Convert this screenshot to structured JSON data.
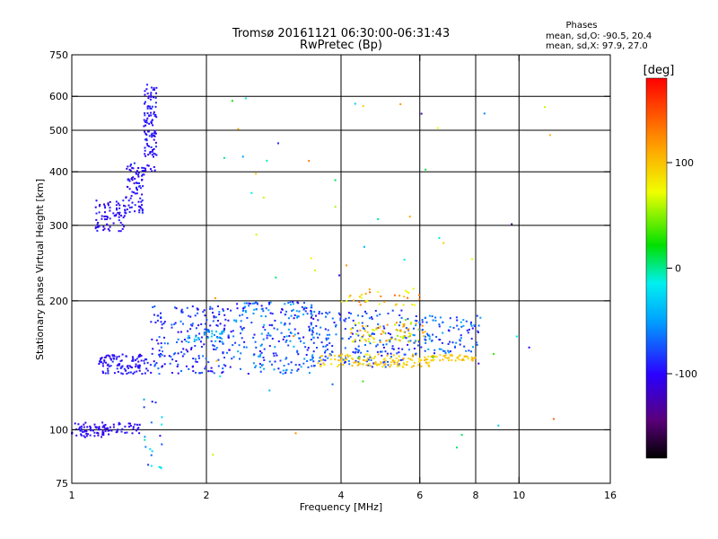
{
  "chart_data": {
    "type": "scatter",
    "title": "Tromsø 20161121 06:30:00-06:31:43",
    "subtitle": "RwPretec (Bp)",
    "xlabel": "Frequency [MHz]",
    "ylabel": "Stationary phase Virtual Height [km]",
    "x_scale": "log",
    "y_scale": "log",
    "xlim": [
      1,
      16
    ],
    "ylim": [
      75,
      750
    ],
    "x_ticks": [
      1,
      2,
      4,
      6,
      8,
      10,
      16
    ],
    "x_tick_labels": [
      "1",
      "2",
      "4",
      "6",
      "8",
      "10",
      "16"
    ],
    "y_ticks": [
      75,
      100,
      200,
      300,
      400,
      500,
      600,
      750
    ],
    "y_tick_labels": [
      "75",
      "100",
      "200",
      "300",
      "400",
      "500",
      "600",
      "750"
    ],
    "grid": true,
    "colorbar": {
      "label": "[deg]",
      "min": -180,
      "max": 180,
      "ticks": [
        100,
        0,
        -100
      ],
      "tick_labels": [
        "100",
        "0",
        "-100"
      ]
    },
    "stats": {
      "heading": "Phases",
      "line_o": "mean, sd,O: -90.5, 20.4",
      "line_x": "mean, sd,X:  97.9, 27.0"
    },
    "point_groups": [
      {
        "f": [
          1.0,
          1.22
        ],
        "h": [
          96,
          104
        ],
        "phase": [
          -115,
          -90
        ],
        "n": 70
      },
      {
        "f": [
          1.22,
          1.42
        ],
        "h": [
          98,
          104
        ],
        "phase": [
          -110,
          -90
        ],
        "n": 30
      },
      {
        "f": [
          1.13,
          1.32
        ],
        "h": [
          290,
          345
        ],
        "phase": [
          -115,
          -85
        ],
        "n": 75
      },
      {
        "f": [
          1.32,
          1.45
        ],
        "h": [
          320,
          420
        ],
        "phase": [
          -110,
          -85
        ],
        "n": 80
      },
      {
        "f": [
          1.45,
          1.55
        ],
        "h": [
          400,
          640
        ],
        "phase": [
          -110,
          -85
        ],
        "n": 110
      },
      {
        "f": [
          1.15,
          1.48
        ],
        "h": [
          135,
          150
        ],
        "phase": [
          -110,
          -85
        ],
        "n": 110
      },
      {
        "f": [
          1.5,
          2.3
        ],
        "h": [
          135,
          195
        ],
        "phase": [
          -110,
          -60
        ],
        "n": 210
      },
      {
        "f": [
          1.8,
          2.3
        ],
        "h": [
          160,
          170
        ],
        "phase": [
          -60,
          -30
        ],
        "n": 30
      },
      {
        "f": [
          2.3,
          3.5
        ],
        "h": [
          135,
          200
        ],
        "phase": [
          -105,
          -40
        ],
        "n": 230
      },
      {
        "f": [
          3.4,
          5.8
        ],
        "h": [
          140,
          190
        ],
        "phase": [
          -100,
          -60
        ],
        "n": 200
      },
      {
        "f": [
          3.5,
          6.5
        ],
        "h": [
          140,
          150
        ],
        "phase": [
          80,
          110
        ],
        "n": 130
      },
      {
        "f": [
          4.2,
          6.2
        ],
        "h": [
          160,
          178
        ],
        "phase": [
          50,
          130
        ],
        "n": 80
      },
      {
        "f": [
          4.0,
          6.0
        ],
        "h": [
          195,
          215
        ],
        "phase": [
          60,
          140
        ],
        "n": 35
      },
      {
        "f": [
          5.8,
          8.2
        ],
        "h": [
          150,
          185
        ],
        "phase": [
          -100,
          -40
        ],
        "n": 110
      },
      {
        "f": [
          6.0,
          8.0
        ],
        "h": [
          145,
          150
        ],
        "phase": [
          85,
          110
        ],
        "n": 45
      },
      {
        "f": [
          1.45,
          1.6
        ],
        "h": [
          80,
          120
        ],
        "phase": [
          -100,
          0
        ],
        "n": 20
      },
      {
        "f": [
          2.0,
          12.0
        ],
        "h": [
          80,
          620
        ],
        "phase": [
          -140,
          140
        ],
        "n": 60
      }
    ]
  }
}
